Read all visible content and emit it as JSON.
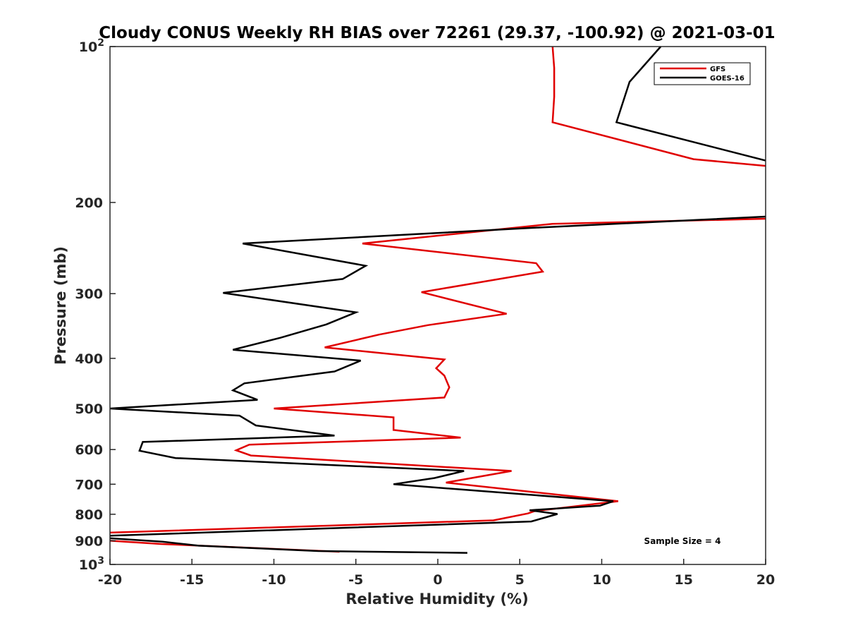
{
  "chart_data": {
    "type": "line",
    "title": "Cloudy CONUS Weekly RH BIAS over 72261 (29.37, -100.92) @ 2021-03-01",
    "xlabel": "Relative Humidity (%)",
    "ylabel": "Pressure (mb)",
    "xlim": [
      -20,
      20
    ],
    "ylim": [
      100,
      1000
    ],
    "yscale": "log",
    "yaxis_reversed": true,
    "grid": false,
    "x_ticks": [
      {
        "value": -20,
        "label": "-20"
      },
      {
        "value": -15,
        "label": "-15"
      },
      {
        "value": -10,
        "label": "-10"
      },
      {
        "value": -5,
        "label": "-5"
      },
      {
        "value": 0,
        "label": "0"
      },
      {
        "value": 5,
        "label": "5"
      },
      {
        "value": 10,
        "label": "10"
      },
      {
        "value": 15,
        "label": "15"
      },
      {
        "value": 20,
        "label": "20"
      }
    ],
    "y_ticks": [
      {
        "value": 100,
        "base": "10",
        "exp": "2"
      },
      {
        "value": 200,
        "label": "200"
      },
      {
        "value": 300,
        "label": "300"
      },
      {
        "value": 400,
        "label": "400"
      },
      {
        "value": 500,
        "label": "500"
      },
      {
        "value": 600,
        "label": "600"
      },
      {
        "value": 700,
        "label": "700"
      },
      {
        "value": 800,
        "label": "800"
      },
      {
        "value": 900,
        "label": "900"
      },
      {
        "value": 1000,
        "base": "10",
        "exp": "3"
      }
    ],
    "legend_position": "top-right",
    "annotation": "Sample Size = 4",
    "series": [
      {
        "name": "GFS",
        "color": "#e00000",
        "segments": [
          [
            [
              7.0,
              100
            ],
            [
              7.1,
              110
            ],
            [
              7.1,
              125
            ],
            [
              7.0,
              140
            ],
            [
              15.6,
              165
            ],
            [
              20.0,
              170
            ]
          ],
          [
            [
              20.0,
              215
            ],
            [
              7.0,
              220
            ],
            [
              -4.6,
              240
            ],
            [
              6.0,
              262
            ],
            [
              6.4,
              272
            ],
            [
              -1.0,
              298
            ],
            [
              4.2,
              328
            ],
            [
              -0.6,
              345
            ],
            [
              -3.6,
              360
            ],
            [
              -6.9,
              381
            ],
            [
              0.4,
              402
            ],
            [
              -0.1,
              418
            ],
            [
              0.4,
              432
            ],
            [
              0.7,
              455
            ],
            [
              0.4,
              476
            ],
            [
              -10.0,
              500
            ],
            [
              -2.7,
              520
            ],
            [
              -2.7,
              550
            ],
            [
              1.4,
              569
            ],
            [
              -11.5,
              587
            ],
            [
              -12.3,
              602
            ],
            [
              -11.4,
              616
            ],
            [
              4.5,
              660
            ],
            [
              0.5,
              695
            ],
            [
              11.0,
              755
            ],
            [
              5.9,
              789
            ],
            [
              5.5,
              797
            ],
            [
              3.4,
              822
            ],
            [
              -20.0,
              868
            ]
          ],
          [
            [
              -20.0,
              900
            ],
            [
              -16.9,
              913
            ],
            [
              -6.0,
              945
            ]
          ]
        ]
      },
      {
        "name": "GOES-16",
        "color": "#000000",
        "segments": [
          [
            [
              13.6,
              100
            ],
            [
              11.7,
              117
            ],
            [
              10.9,
              140
            ],
            [
              20.0,
              166
            ]
          ],
          [
            [
              20.0,
              213
            ],
            [
              5.6,
              224
            ],
            [
              -11.9,
              240
            ],
            [
              -4.4,
              265
            ],
            [
              -5.8,
              281
            ],
            [
              -13.1,
              299
            ],
            [
              -5.0,
              326
            ],
            [
              -6.8,
              344
            ],
            [
              -9.6,
              365
            ],
            [
              -12.5,
              385
            ],
            [
              -4.7,
              404
            ],
            [
              -6.3,
              424
            ],
            [
              -11.8,
              447
            ],
            [
              -12.5,
              461
            ],
            [
              -11.0,
              481
            ],
            [
              -20.0,
              500
            ],
            [
              -12.1,
              516
            ],
            [
              -11.1,
              539
            ],
            [
              -6.3,
              564
            ],
            [
              -18.0,
              580
            ],
            [
              -18.2,
              603
            ],
            [
              -16.0,
              623
            ],
            [
              1.6,
              660
            ],
            [
              -0.2,
              681
            ],
            [
              -2.7,
              700
            ],
            [
              10.7,
              755
            ],
            [
              9.9,
              770
            ],
            [
              5.6,
              786
            ],
            [
              7.3,
              799
            ],
            [
              5.7,
              826
            ],
            [
              -20.0,
              880
            ]
          ],
          [
            [
              -20.0,
              890
            ],
            [
              -16.8,
              904
            ],
            [
              -14.6,
              920
            ],
            [
              -7.3,
              942
            ],
            [
              1.8,
              950
            ]
          ]
        ]
      }
    ]
  }
}
